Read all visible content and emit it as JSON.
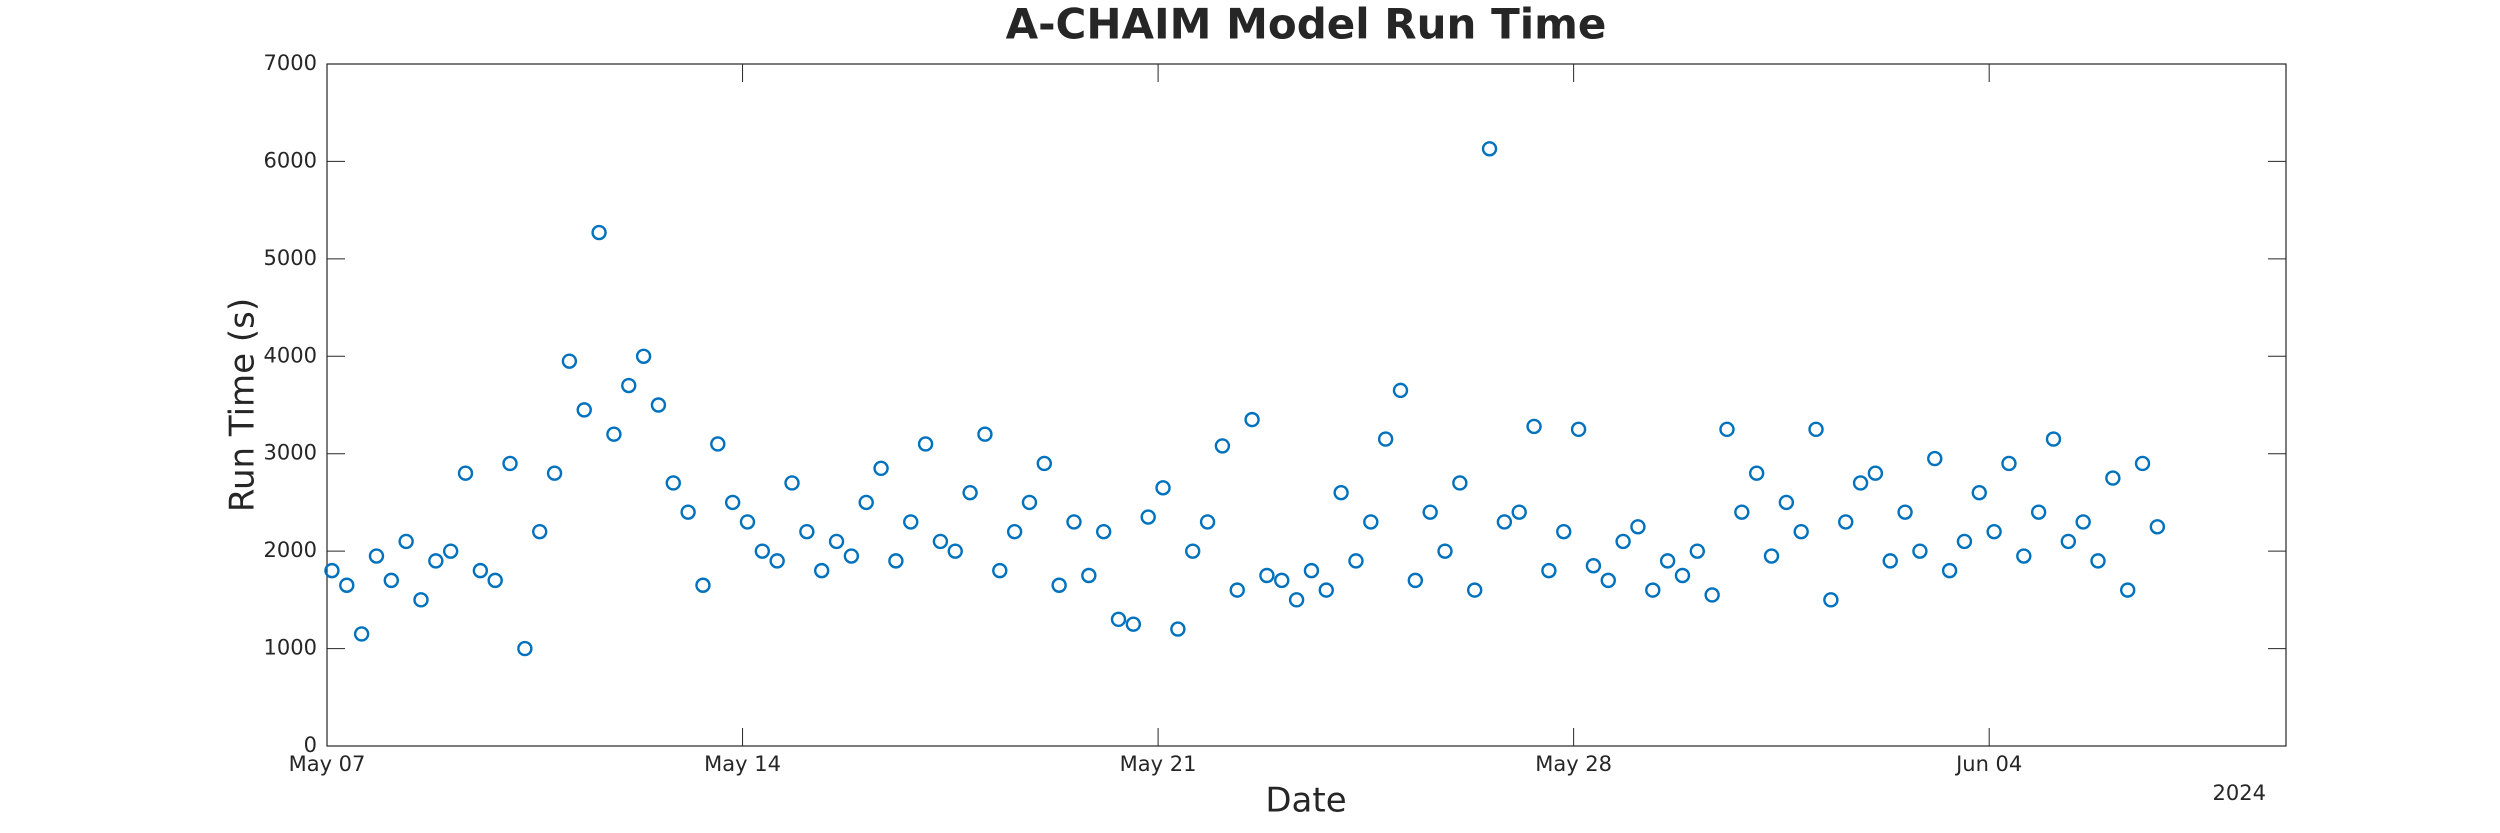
{
  "chart_data": {
    "type": "scatter",
    "title": "A-CHAIM Model Run Time",
    "xlabel": "Date",
    "ylabel": "Run Time (s)",
    "x_offset_label": "2024",
    "color": "#0072BD",
    "box": true,
    "xlim": [
      "2024-05-07",
      "2024-06-09"
    ],
    "xticks": [
      {
        "value": "2024-05-07",
        "label": "May 07"
      },
      {
        "value": "2024-05-14",
        "label": "May 14"
      },
      {
        "value": "2024-05-21",
        "label": "May 21"
      },
      {
        "value": "2024-05-28",
        "label": "May 28"
      },
      {
        "value": "2024-06-04",
        "label": "Jun 04"
      }
    ],
    "ylim": [
      0,
      7000
    ],
    "yticks": [
      0,
      1000,
      2000,
      3000,
      4000,
      5000,
      6000,
      7000
    ],
    "x": [
      "2024-05-07 02:00",
      "2024-05-07 08:00",
      "2024-05-07 14:00",
      "2024-05-07 20:00",
      "2024-05-08 02:00",
      "2024-05-08 08:00",
      "2024-05-08 14:00",
      "2024-05-08 20:00",
      "2024-05-09 02:00",
      "2024-05-09 08:00",
      "2024-05-09 14:00",
      "2024-05-09 20:00",
      "2024-05-10 02:00",
      "2024-05-10 08:00",
      "2024-05-10 14:00",
      "2024-05-10 20:00",
      "2024-05-11 02:00",
      "2024-05-11 08:00",
      "2024-05-11 14:00",
      "2024-05-11 20:00",
      "2024-05-12 02:00",
      "2024-05-12 08:00",
      "2024-05-12 14:00",
      "2024-05-12 20:00",
      "2024-05-13 02:00",
      "2024-05-13 08:00",
      "2024-05-13 14:00",
      "2024-05-13 20:00",
      "2024-05-14 02:00",
      "2024-05-14 08:00",
      "2024-05-14 14:00",
      "2024-05-14 20:00",
      "2024-05-15 02:00",
      "2024-05-15 08:00",
      "2024-05-15 14:00",
      "2024-05-15 20:00",
      "2024-05-16 02:00",
      "2024-05-16 08:00",
      "2024-05-16 14:00",
      "2024-05-16 20:00",
      "2024-05-17 02:00",
      "2024-05-17 08:00",
      "2024-05-17 14:00",
      "2024-05-17 20:00",
      "2024-05-18 02:00",
      "2024-05-18 08:00",
      "2024-05-18 14:00",
      "2024-05-18 20:00",
      "2024-05-19 02:00",
      "2024-05-19 08:00",
      "2024-05-19 14:00",
      "2024-05-19 20:00",
      "2024-05-20 02:00",
      "2024-05-20 08:00",
      "2024-05-20 14:00",
      "2024-05-20 20:00",
      "2024-05-21 02:00",
      "2024-05-21 08:00",
      "2024-05-21 14:00",
      "2024-05-21 20:00",
      "2024-05-22 02:00",
      "2024-05-22 08:00",
      "2024-05-22 14:00",
      "2024-05-22 20:00",
      "2024-05-23 02:00",
      "2024-05-23 08:00",
      "2024-05-23 14:00",
      "2024-05-23 20:00",
      "2024-05-24 02:00",
      "2024-05-24 08:00",
      "2024-05-24 14:00",
      "2024-05-24 20:00",
      "2024-05-25 02:00",
      "2024-05-25 08:00",
      "2024-05-25 14:00",
      "2024-05-25 20:00",
      "2024-05-26 02:00",
      "2024-05-26 08:00",
      "2024-05-26 14:00",
      "2024-05-26 20:00",
      "2024-05-27 02:00",
      "2024-05-27 08:00",
      "2024-05-27 14:00",
      "2024-05-27 20:00",
      "2024-05-28 02:00",
      "2024-05-28 08:00",
      "2024-05-28 14:00",
      "2024-05-28 20:00",
      "2024-05-29 02:00",
      "2024-05-29 08:00",
      "2024-05-29 14:00",
      "2024-05-29 20:00",
      "2024-05-30 02:00",
      "2024-05-30 08:00",
      "2024-05-30 14:00",
      "2024-05-30 20:00",
      "2024-05-31 02:00",
      "2024-05-31 08:00",
      "2024-05-31 14:00",
      "2024-05-31 20:00",
      "2024-06-01 02:00",
      "2024-06-01 08:00",
      "2024-06-01 14:00",
      "2024-06-01 20:00",
      "2024-06-02 02:00",
      "2024-06-02 08:00",
      "2024-06-02 14:00",
      "2024-06-02 20:00",
      "2024-06-03 02:00",
      "2024-06-03 08:00",
      "2024-06-03 14:00",
      "2024-06-03 20:00",
      "2024-06-04 02:00",
      "2024-06-04 08:00",
      "2024-06-04 14:00",
      "2024-06-04 20:00",
      "2024-06-05 02:00",
      "2024-06-05 08:00",
      "2024-06-05 14:00",
      "2024-06-05 20:00",
      "2024-06-06 02:00",
      "2024-06-06 08:00",
      "2024-06-06 14:00",
      "2024-06-06 20:00"
    ],
    "values": [
      1800,
      1650,
      1150,
      1950,
      1700,
      2100,
      1500,
      1900,
      2000,
      2800,
      1800,
      1700,
      2900,
      1000,
      2200,
      2800,
      3950,
      3450,
      5270,
      3200,
      3700,
      4000,
      3500,
      2700,
      2400,
      1650,
      3100,
      2500,
      2300,
      2000,
      1900,
      2700,
      2200,
      1800,
      2100,
      1950,
      2500,
      2850,
      1900,
      2300,
      3100,
      2100,
      2000,
      2600,
      3200,
      1800,
      2200,
      2500,
      2900,
      1650,
      2300,
      1750,
      2200,
      1300,
      1250,
      2350,
      2650,
      1200,
      2000,
      2300,
      3080,
      1600,
      3350,
      1750,
      1700,
      1500,
      1800,
      1600,
      2600,
      1900,
      2300,
      3150,
      3650,
      1700,
      2400,
      2000,
      2700,
      1600,
      6130,
      2300,
      2400,
      3280,
      1800,
      2200,
      3250,
      1850,
      1700,
      2100,
      2250,
      1600,
      1900,
      1750,
      2000,
      1550,
      3250,
      2400,
      2800,
      1950,
      2500,
      2200,
      3250,
      1500,
      2300,
      2700,
      2800,
      1900,
      2400,
      2000,
      2950,
      1800,
      2100,
      2600,
      2200,
      2900,
      1950,
      2400,
      3150,
      2100,
      2300,
      1900,
      2750,
      1600,
      2900,
      2250
    ]
  }
}
